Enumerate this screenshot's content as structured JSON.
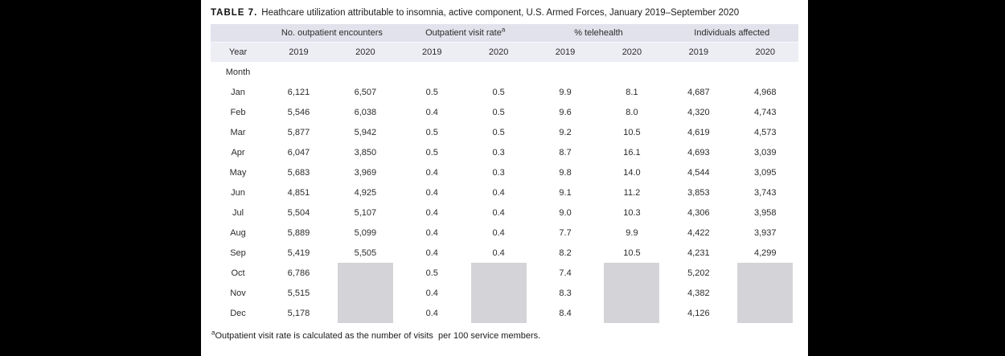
{
  "colors": {
    "page_bg": "#000000",
    "panel_bg": "#ffffff",
    "header_band": "#e2e2ec",
    "year_band": "#ededf4",
    "blocked_cell": "#d4d4d8",
    "text": "#2b2b2b"
  },
  "title": {
    "label": "TABLE 7.",
    "text": "Heathcare utilization attributable to insomnia, active component, U.S. Armed Forces, January 2019–September 2020"
  },
  "table": {
    "group_headers": [
      {
        "label": "No. outpatient encounters",
        "sup": ""
      },
      {
        "label": "Outpatient visit rate",
        "sup": "a"
      },
      {
        "label": "% telehealth",
        "sup": ""
      },
      {
        "label": "Individuals affected",
        "sup": ""
      }
    ],
    "year_row_label": "Year",
    "years": [
      "2019",
      "2020",
      "2019",
      "2020",
      "2019",
      "2020",
      "2019",
      "2020"
    ],
    "month_row_label": "Month",
    "rows": [
      {
        "month": "Jan",
        "values": [
          "6,121",
          "6,507",
          "0.5",
          "0.5",
          "9.9",
          "8.1",
          "4,687",
          "4,968"
        ]
      },
      {
        "month": "Feb",
        "values": [
          "5,546",
          "6,038",
          "0.4",
          "0.5",
          "9.6",
          "8.0",
          "4,320",
          "4,743"
        ]
      },
      {
        "month": "Mar",
        "values": [
          "5,877",
          "5,942",
          "0.5",
          "0.5",
          "9.2",
          "10.5",
          "4,619",
          "4,573"
        ]
      },
      {
        "month": "Apr",
        "values": [
          "6,047",
          "3,850",
          "0.5",
          "0.3",
          "8.7",
          "16.1",
          "4,693",
          "3,039"
        ]
      },
      {
        "month": "May",
        "values": [
          "5,683",
          "3,969",
          "0.4",
          "0.3",
          "9.8",
          "14.0",
          "4,544",
          "3,095"
        ]
      },
      {
        "month": "Jun",
        "values": [
          "4,851",
          "4,925",
          "0.4",
          "0.4",
          "9.1",
          "11.2",
          "3,853",
          "3,743"
        ]
      },
      {
        "month": "Jul",
        "values": [
          "5,504",
          "5,107",
          "0.4",
          "0.4",
          "9.0",
          "10.3",
          "4,306",
          "3,958"
        ]
      },
      {
        "month": "Aug",
        "values": [
          "5,889",
          "5,099",
          "0.4",
          "0.4",
          "7.7",
          "9.9",
          "4,422",
          "3,937"
        ]
      },
      {
        "month": "Sep",
        "values": [
          "5,419",
          "5,505",
          "0.4",
          "0.4",
          "8.2",
          "10.5",
          "4,231",
          "4,299"
        ]
      },
      {
        "month": "Oct",
        "values": [
          "6,786",
          null,
          "0.5",
          null,
          "7.4",
          null,
          "5,202",
          null
        ]
      },
      {
        "month": "Nov",
        "values": [
          "5,515",
          null,
          "0.4",
          null,
          "8.3",
          null,
          "4,382",
          null
        ]
      },
      {
        "month": "Dec",
        "values": [
          "5,178",
          null,
          "0.4",
          null,
          "8.4",
          null,
          "4,126",
          null
        ]
      }
    ]
  },
  "footnote": {
    "sup": "a",
    "text": "Outpatient visit rate is calculated as the number of visits  per 100 service members."
  }
}
